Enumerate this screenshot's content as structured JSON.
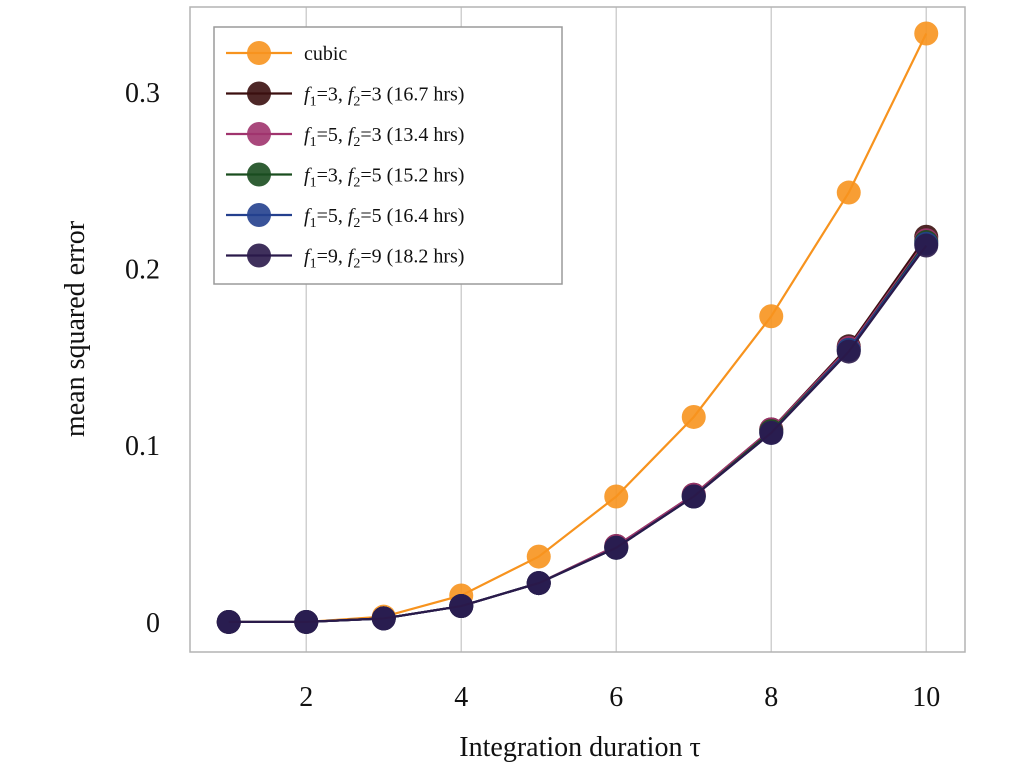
{
  "chart_data": {
    "type": "line",
    "title": "",
    "xlabel": "Integration duration τ",
    "ylabel": "mean squared error",
    "xlim": [
      0.5,
      10.5
    ],
    "ylim": [
      -0.017,
      0.348
    ],
    "xticks": [
      2,
      4,
      6,
      8,
      10
    ],
    "xtick_labels": [
      "2",
      "4",
      "6",
      "8",
      "10"
    ],
    "yticks": [
      0,
      0.1,
      0.2,
      0.3
    ],
    "ytick_labels": [
      "0",
      "0.1",
      "0.2",
      "0.3"
    ],
    "grid": "vertical",
    "legend_position": "top-left",
    "x": [
      1,
      2,
      3,
      4,
      5,
      6,
      7,
      8,
      9,
      10
    ],
    "series": [
      {
        "name": "cubic",
        "color": "#f7931e",
        "values": [
          0.0,
          0.0,
          0.003,
          0.015,
          0.037,
          0.071,
          0.116,
          0.173,
          0.243,
          0.333
        ]
      },
      {
        "name": "f1=3, f2=3 (16.7 hrs)",
        "color": "#3b0f0f",
        "values": [
          0.0,
          0.0,
          0.002,
          0.009,
          0.022,
          0.043,
          0.072,
          0.109,
          0.156,
          0.218
        ]
      },
      {
        "name": "f1=5, f2=3 (13.4 hrs)",
        "color": "#a0346e",
        "values": [
          0.0,
          0.0,
          0.002,
          0.009,
          0.022,
          0.043,
          0.072,
          0.109,
          0.155,
          0.216
        ]
      },
      {
        "name": "f1=3, f2=5 (15.2 hrs)",
        "color": "#1a4d1f",
        "values": [
          0.0,
          0.0,
          0.002,
          0.009,
          0.022,
          0.042,
          0.071,
          0.108,
          0.154,
          0.215
        ]
      },
      {
        "name": "f1=5, f2=5 (16.4 hrs)",
        "color": "#24408e",
        "values": [
          0.0,
          0.0,
          0.002,
          0.009,
          0.022,
          0.042,
          0.071,
          0.107,
          0.154,
          0.214
        ]
      },
      {
        "name": "f1=9, f2=9 (18.2 hrs)",
        "color": "#2a1a4a",
        "values": [
          0.0,
          0.0,
          0.002,
          0.009,
          0.022,
          0.042,
          0.071,
          0.107,
          0.153,
          0.213
        ]
      }
    ]
  },
  "legend": [
    {
      "plain": "cubic"
    },
    {
      "f1": "3",
      "f2": "3",
      "rest": " (16.7 hrs)"
    },
    {
      "f1": "5",
      "f2": "3",
      "rest": " (13.4 hrs)"
    },
    {
      "f1": "3",
      "f2": "5",
      "rest": " (15.2 hrs)"
    },
    {
      "f1": "5",
      "f2": "5",
      "rest": " (16.4 hrs)"
    },
    {
      "f1": "9",
      "f2": "9",
      "rest": " (18.2 hrs)"
    }
  ],
  "glyphs": {
    "f": "f",
    "sub1": "1",
    "sub2": "2",
    "eq": "=",
    "sep": ", "
  },
  "frame_color": "#b3b3b3",
  "grid_color": "#d0d0d0"
}
